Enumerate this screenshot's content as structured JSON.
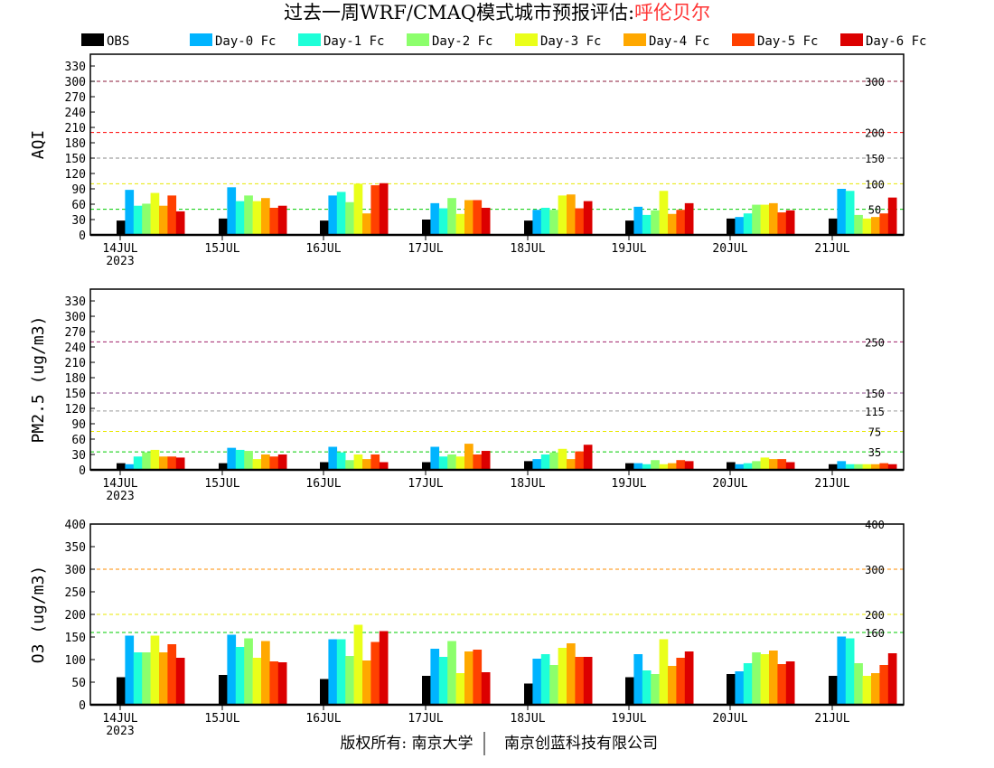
{
  "title": {
    "main": "过去一周WRF/CMAQ模式城市预报评估:",
    "city": "呼伦贝尔",
    "city_color": "#ff3333"
  },
  "footer": {
    "left": "版权所有: 南京大学",
    "right": "南京创蓝科技有限公司"
  },
  "chart_data": [
    {
      "type": "bar",
      "ylabel": "AQI",
      "ylim": [
        0,
        353
      ],
      "yticks": [
        0,
        30,
        60,
        90,
        120,
        150,
        180,
        210,
        240,
        270,
        300,
        330
      ],
      "categories": [
        "14JUL",
        "15JUL",
        "16JUL",
        "17JUL",
        "18JUL",
        "19JUL",
        "20JUL",
        "21JUL"
      ],
      "year_label": "2023",
      "reference_lines": [
        {
          "value": 300,
          "label": "300",
          "color": "#8b1a3a"
        },
        {
          "value": 200,
          "label": "200",
          "color": "#ff0000"
        },
        {
          "value": 150,
          "label": "150",
          "color": "#888888"
        },
        {
          "value": 100,
          "label": "100",
          "color": "#e8e800"
        },
        {
          "value": 50,
          "label": "50",
          "color": "#00cc00"
        }
      ],
      "series": [
        {
          "name": "OBS",
          "color": "#000000",
          "values": [
            28,
            32,
            28,
            30,
            28,
            28,
            32,
            32
          ]
        },
        {
          "name": "Day-0 Fc",
          "color": "#00b4ff",
          "values": [
            88,
            93,
            77,
            62,
            49,
            55,
            35,
            90
          ]
        },
        {
          "name": "Day-1 Fc",
          "color": "#1effd8",
          "values": [
            57,
            66,
            84,
            52,
            53,
            39,
            42,
            86
          ]
        },
        {
          "name": "Day-2 Fc",
          "color": "#8cff6c",
          "values": [
            61,
            77,
            64,
            72,
            49,
            48,
            59,
            39
          ]
        },
        {
          "name": "Day-3 Fc",
          "color": "#eaff1a",
          "values": [
            82,
            66,
            100,
            41,
            77,
            86,
            59,
            32
          ]
        },
        {
          "name": "Day-4 Fc",
          "color": "#ffa800",
          "values": [
            57,
            72,
            42,
            68,
            79,
            41,
            62,
            35
          ]
        },
        {
          "name": "Day-5 Fc",
          "color": "#ff4000",
          "values": [
            77,
            53,
            97,
            68,
            52,
            49,
            44,
            42
          ]
        },
        {
          "name": "Day-6 Fc",
          "color": "#dc0000",
          "values": [
            46,
            57,
            101,
            53,
            66,
            62,
            48,
            73
          ]
        }
      ]
    },
    {
      "type": "bar",
      "ylabel": "PM2.5 (ug/m3)",
      "ylim": [
        0,
        353
      ],
      "yticks": [
        0,
        30,
        60,
        90,
        120,
        150,
        180,
        210,
        240,
        270,
        300,
        330
      ],
      "categories": [
        "14JUL",
        "15JUL",
        "16JUL",
        "17JUL",
        "18JUL",
        "19JUL",
        "20JUL",
        "21JUL"
      ],
      "year_label": "2023",
      "reference_lines": [
        {
          "value": 250,
          "label": "250",
          "color": "#a0206a"
        },
        {
          "value": 150,
          "label": "150",
          "color": "#8b4a8b"
        },
        {
          "value": 115,
          "label": "115",
          "color": "#999999"
        },
        {
          "value": 75,
          "label": "75",
          "color": "#e8e800"
        },
        {
          "value": 35,
          "label": "35",
          "color": "#00cc00"
        }
      ],
      "series": [
        {
          "name": "OBS",
          "color": "#000000",
          "values": [
            13,
            13,
            15,
            15,
            17,
            13,
            15,
            11
          ]
        },
        {
          "name": "Day-0 Fc",
          "color": "#00b4ff",
          "values": [
            11,
            43,
            45,
            45,
            21,
            13,
            11,
            17
          ]
        },
        {
          "name": "Day-1 Fc",
          "color": "#1effd8",
          "values": [
            26,
            39,
            34,
            26,
            30,
            11,
            13,
            11
          ]
        },
        {
          "name": "Day-2 Fc",
          "color": "#8cff6c",
          "values": [
            34,
            37,
            19,
            30,
            34,
            19,
            17,
            11
          ]
        },
        {
          "name": "Day-3 Fc",
          "color": "#eaff1a",
          "values": [
            39,
            21,
            30,
            26,
            41,
            11,
            24,
            11
          ]
        },
        {
          "name": "Day-4 Fc",
          "color": "#ffa800",
          "values": [
            26,
            30,
            21,
            51,
            21,
            13,
            21,
            11
          ]
        },
        {
          "name": "Day-5 Fc",
          "color": "#ff4000",
          "values": [
            26,
            26,
            30,
            30,
            36,
            19,
            21,
            13
          ]
        },
        {
          "name": "Day-6 Fc",
          "color": "#dc0000",
          "values": [
            24,
            30,
            15,
            37,
            49,
            17,
            15,
            11
          ]
        }
      ]
    },
    {
      "type": "bar",
      "ylabel": "O3 (ug/m3)",
      "ylim": [
        0,
        400
      ],
      "yticks": [
        0,
        50,
        100,
        150,
        200,
        250,
        300,
        350,
        400
      ],
      "categories": [
        "14JUL",
        "15JUL",
        "16JUL",
        "17JUL",
        "18JUL",
        "19JUL",
        "20JUL",
        "21JUL"
      ],
      "year_label": "2023",
      "reference_lines": [
        {
          "value": 400,
          "label": "400",
          "color": "#ff0000"
        },
        {
          "value": 300,
          "label": "300",
          "color": "#ff8c00"
        },
        {
          "value": 200,
          "label": "200",
          "color": "#e8e800"
        },
        {
          "value": 160,
          "label": "160",
          "color": "#00cc00"
        }
      ],
      "series": [
        {
          "name": "OBS",
          "color": "#000000",
          "values": [
            61,
            66,
            57,
            64,
            47,
            61,
            68,
            64
          ]
        },
        {
          "name": "Day-0 Fc",
          "color": "#00b4ff",
          "values": [
            153,
            155,
            145,
            124,
            102,
            112,
            74,
            151
          ]
        },
        {
          "name": "Day-1 Fc",
          "color": "#1effd8",
          "values": [
            116,
            128,
            145,
            106,
            112,
            76,
            92,
            147
          ]
        },
        {
          "name": "Day-2 Fc",
          "color": "#8cff6c",
          "values": [
            116,
            147,
            108,
            141,
            88,
            68,
            116,
            92
          ]
        },
        {
          "name": "Day-3 Fc",
          "color": "#eaff1a",
          "values": [
            153,
            104,
            177,
            70,
            126,
            145,
            112,
            64
          ]
        },
        {
          "name": "Day-4 Fc",
          "color": "#ffa800",
          "values": [
            116,
            141,
            98,
            118,
            136,
            86,
            120,
            70
          ]
        },
        {
          "name": "Day-5 Fc",
          "color": "#ff4000",
          "values": [
            134,
            96,
            139,
            122,
            106,
            104,
            90,
            88
          ]
        },
        {
          "name": "Day-6 Fc",
          "color": "#dc0000",
          "values": [
            104,
            94,
            163,
            72,
            106,
            118,
            96,
            114
          ]
        }
      ]
    }
  ]
}
